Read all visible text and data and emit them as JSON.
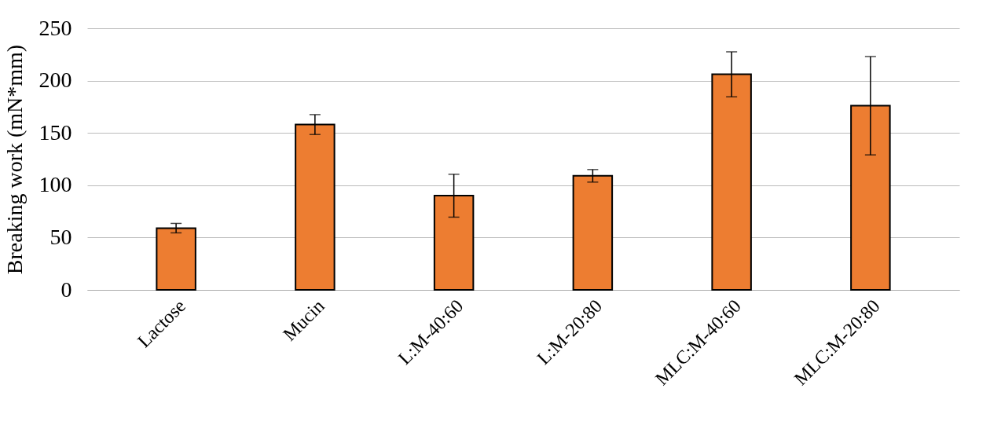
{
  "chart_data": {
    "type": "bar",
    "ylabel": "Breaking work (mN*mm)",
    "categories": [
      "Lactose",
      "Mucin",
      "L:M-40:60",
      "L:M-20:80",
      "MLC:M-40:60",
      "MLC:M-20:80"
    ],
    "values": [
      59,
      158,
      90,
      109,
      206,
      176
    ],
    "errors": [
      4.5,
      9.5,
      20.5,
      6,
      21.5,
      47
    ],
    "color": "#ed7d31",
    "ylim": [
      0,
      250
    ],
    "yticks": [
      0,
      50,
      100,
      150,
      200,
      250
    ],
    "grid": "y"
  }
}
